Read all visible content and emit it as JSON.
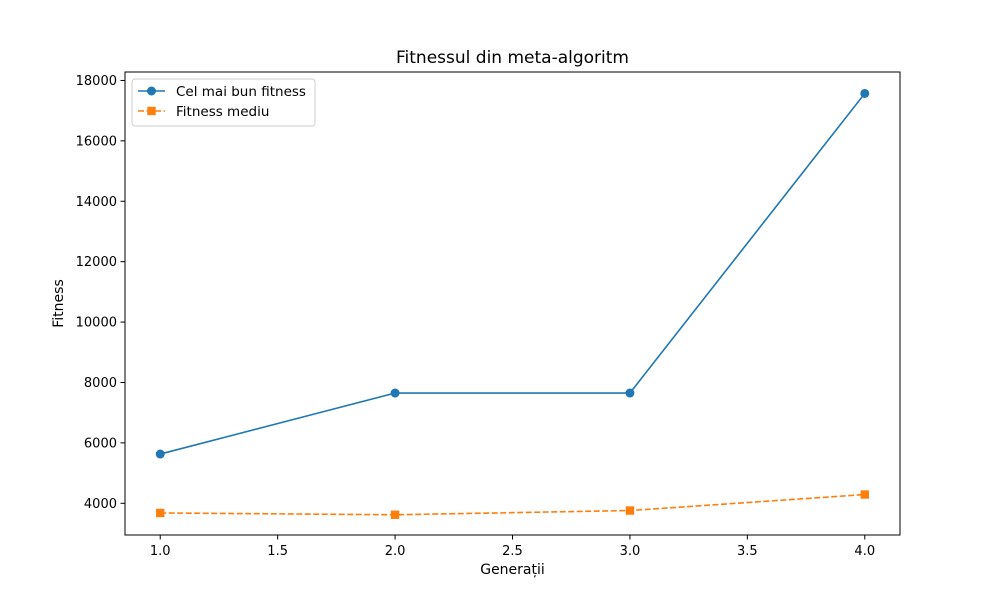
{
  "chart_data": {
    "type": "line",
    "title": "Fitnessul din meta-algoritm",
    "xlabel": "Generații",
    "ylabel": "Fitness",
    "x": [
      1.0,
      2.0,
      3.0,
      4.0
    ],
    "xlim": [
      0.85,
      4.15
    ],
    "ylim": [
      2950,
      18280
    ],
    "xticks": [
      1.0,
      1.5,
      2.0,
      2.5,
      3.0,
      3.5,
      4.0
    ],
    "xtick_labels": [
      "1.0",
      "1.5",
      "2.0",
      "2.5",
      "3.0",
      "3.5",
      "4.0"
    ],
    "yticks": [
      4000,
      6000,
      8000,
      10000,
      12000,
      14000,
      16000,
      18000
    ],
    "ytick_labels": [
      "4000",
      "6000",
      "8000",
      "10000",
      "12000",
      "14000",
      "16000",
      "18000"
    ],
    "grid": false,
    "legend_position": "top-left",
    "series": [
      {
        "name": "Cel mai bun fitness",
        "values": [
          5630,
          7650,
          7650,
          17570
        ],
        "color": "#1f77b4",
        "marker": "circle",
        "linestyle": "solid"
      },
      {
        "name": "Fitness mediu",
        "values": [
          3680,
          3620,
          3760,
          4290
        ],
        "color": "#ff7f0e",
        "marker": "square",
        "linestyle": "dashed"
      }
    ]
  }
}
